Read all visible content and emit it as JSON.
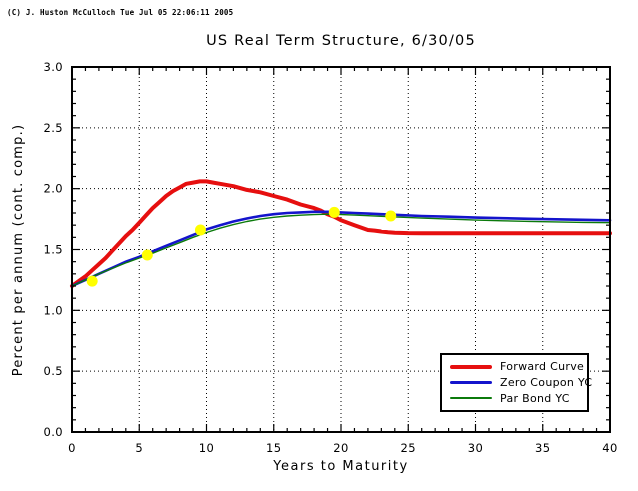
{
  "figure": {
    "copyright": "(C) J. Huston McCulloch Tue Jul 05 22:06:11 2005"
  },
  "chart_data": {
    "type": "line",
    "title": "US Real Term Structure, 6/30/05",
    "xlabel": "Years to Maturity",
    "ylabel": "Percent per annum (cont. comp.)",
    "xlim": [
      0,
      40
    ],
    "ylim": [
      0.0,
      3.0
    ],
    "x_major_ticks": [
      0,
      5,
      10,
      15,
      20,
      25,
      30,
      35,
      40
    ],
    "x_minor_step": 1,
    "y_major_ticks": [
      0.0,
      0.5,
      1.0,
      1.5,
      2.0,
      2.5,
      3.0
    ],
    "y_minor_step": 0.1,
    "grid": "dotted-black-at-major-ticks",
    "legend_position": "lower-right-inside",
    "frame": "full-box-inward-ticks",
    "series": [
      {
        "name": "Forward Curve",
        "color": "#e60f0f",
        "width": 4,
        "x": [
          0,
          0.5,
          1,
          1.5,
          2,
          2.5,
          3,
          3.5,
          4,
          4.5,
          5,
          5.5,
          6,
          6.5,
          7,
          7.5,
          8,
          8.5,
          9,
          9.5,
          10,
          10.5,
          11,
          12,
          13,
          14,
          15,
          16,
          17,
          18,
          18.5,
          19,
          19.5,
          20,
          20.5,
          21,
          21.5,
          22,
          22.5,
          23,
          23.5,
          24,
          25,
          26,
          28,
          30,
          35,
          40
        ],
        "y": [
          1.2,
          1.24,
          1.28,
          1.33,
          1.38,
          1.43,
          1.49,
          1.55,
          1.61,
          1.66,
          1.72,
          1.78,
          1.84,
          1.89,
          1.94,
          1.98,
          2.01,
          2.04,
          2.05,
          2.06,
          2.06,
          2.05,
          2.04,
          2.02,
          1.99,
          1.97,
          1.94,
          1.91,
          1.87,
          1.84,
          1.82,
          1.79,
          1.77,
          1.74,
          1.72,
          1.7,
          1.68,
          1.66,
          1.655,
          1.648,
          1.642,
          1.638,
          1.635,
          1.634,
          1.633,
          1.633,
          1.633,
          1.633
        ]
      },
      {
        "name": "Zero Coupon YC",
        "color": "#1414cc",
        "width": 2.6,
        "x": [
          0,
          1,
          2,
          3,
          4,
          5,
          6,
          7,
          8,
          9,
          10,
          11,
          12,
          13,
          14,
          15,
          16,
          17,
          18,
          19,
          20,
          21,
          22,
          23,
          24,
          26,
          28,
          30,
          32,
          34,
          36,
          38,
          40
        ],
        "y": [
          1.2,
          1.25,
          1.3,
          1.35,
          1.4,
          1.44,
          1.485,
          1.53,
          1.575,
          1.62,
          1.665,
          1.7,
          1.73,
          1.755,
          1.775,
          1.79,
          1.8,
          1.805,
          1.81,
          1.81,
          1.805,
          1.8,
          1.795,
          1.79,
          1.785,
          1.775,
          1.77,
          1.762,
          1.757,
          1.752,
          1.748,
          1.744,
          1.74
        ]
      },
      {
        "name": "Par Bond YC",
        "color": "#0b7a0b",
        "width": 1.4,
        "x": [
          0,
          1,
          2,
          3,
          4,
          5,
          6,
          7,
          8,
          9,
          10,
          11,
          12,
          13,
          14,
          15,
          16,
          17,
          18,
          19,
          20,
          21,
          22,
          23,
          24,
          26,
          28,
          30,
          32,
          34,
          36,
          38,
          40
        ],
        "y": [
          1.2,
          1.25,
          1.3,
          1.345,
          1.39,
          1.43,
          1.47,
          1.513,
          1.556,
          1.6,
          1.64,
          1.675,
          1.705,
          1.73,
          1.75,
          1.765,
          1.775,
          1.782,
          1.787,
          1.79,
          1.787,
          1.783,
          1.778,
          1.773,
          1.768,
          1.758,
          1.75,
          1.742,
          1.736,
          1.731,
          1.727,
          1.723,
          1.72
        ]
      }
    ],
    "markers": {
      "name": "observed-maturity-points",
      "color": "#ffff00",
      "radius": 5.5,
      "points": [
        [
          1.5,
          1.24
        ],
        [
          5.6,
          1.455
        ],
        [
          9.55,
          1.66
        ],
        [
          19.5,
          1.805
        ],
        [
          23.7,
          1.775
        ]
      ]
    }
  }
}
